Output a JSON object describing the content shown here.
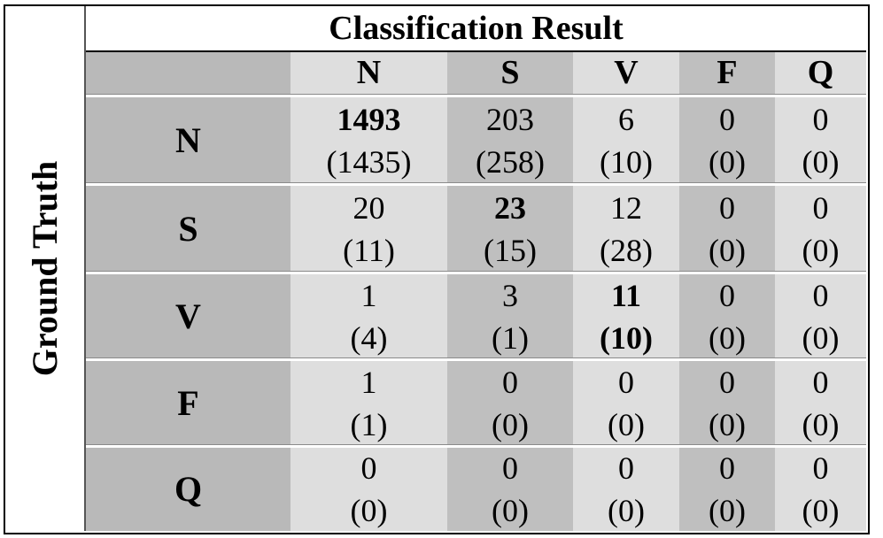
{
  "table": {
    "title": "Classification Result",
    "row_header": "Ground Truth",
    "columns": [
      "N",
      "S",
      "V",
      "F",
      "Q"
    ],
    "rows": [
      {
        "label": "N",
        "cells": [
          {
            "top": "1493",
            "bottom": "(1435)",
            "bold_top": true
          },
          {
            "top": "203",
            "bottom": "(258)"
          },
          {
            "top": "6",
            "bottom": "(10)"
          },
          {
            "top": "0",
            "bottom": "(0)"
          },
          {
            "top": "0",
            "bottom": "(0)"
          }
        ]
      },
      {
        "label": "S",
        "cells": [
          {
            "top": "20",
            "bottom": "(11)"
          },
          {
            "top": "23",
            "bottom": "(15)",
            "bold_top": true
          },
          {
            "top": "12",
            "bottom": "(28)"
          },
          {
            "top": "0",
            "bottom": "(0)"
          },
          {
            "top": "0",
            "bottom": "(0)"
          }
        ]
      },
      {
        "label": "V",
        "cells": [
          {
            "top": "1",
            "bottom": "(4)"
          },
          {
            "top": "3",
            "bottom": "(1)"
          },
          {
            "top": "11",
            "bottom": "(10)",
            "bold_top": true,
            "bold_bottom": true
          },
          {
            "top": "0",
            "bottom": "(0)"
          },
          {
            "top": "0",
            "bottom": "(0)"
          }
        ]
      },
      {
        "label": "F",
        "cells": [
          {
            "top": "1",
            "bottom": "(1)"
          },
          {
            "top": "0",
            "bottom": "(0)"
          },
          {
            "top": "0",
            "bottom": "(0)"
          },
          {
            "top": "0",
            "bottom": "(0)"
          },
          {
            "top": "0",
            "bottom": "(0)"
          }
        ]
      },
      {
        "label": "Q",
        "cells": [
          {
            "top": "0",
            "bottom": "(0)"
          },
          {
            "top": "0",
            "bottom": "(0)"
          },
          {
            "top": "0",
            "bottom": "(0)"
          },
          {
            "top": "0",
            "bottom": "(0)"
          },
          {
            "top": "0",
            "bottom": "(0)"
          }
        ]
      }
    ]
  }
}
